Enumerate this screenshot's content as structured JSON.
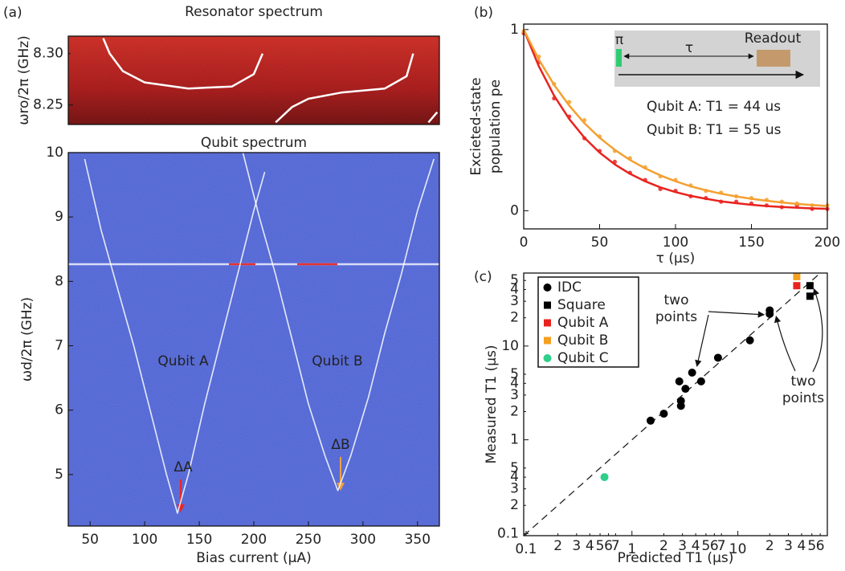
{
  "chart_data": [
    {
      "type": "line",
      "panel": "(a)",
      "title": "Resonator spectrum",
      "y_label": "ωro/2π (GHz)",
      "xlim": [
        30,
        370
      ],
      "ylim": [
        8.231,
        8.317
      ],
      "yticks": [
        8.25,
        {
          "value": 8.3,
          "label": "8.30"
        }
      ],
      "x": [
        62,
        68,
        80,
        100,
        140,
        180,
        200,
        208,
        214,
        220,
        235,
        250,
        280,
        320,
        340,
        346,
        352,
        360,
        368
      ],
      "series": [
        {
          "color": "#ffffff",
          "values": [
            8.315,
            8.3,
            8.283,
            8.272,
            8.266,
            8.268,
            8.28,
            8.3,
            null,
            8.233,
            8.248,
            8.256,
            8.262,
            8.266,
            8.278,
            8.3,
            null,
            8.233,
            8.243
          ]
        }
      ]
    },
    {
      "type": "line",
      "title": "Qubit spectrum",
      "x_label": "Bias current (μA)",
      "y_label": "ωd/2π (GHz)",
      "xlim": [
        30,
        370
      ],
      "ylim": [
        4.2,
        10
      ],
      "xticks": [
        50,
        100,
        150,
        200,
        250,
        300,
        350
      ],
      "yticks": [
        5,
        6,
        7,
        8,
        9,
        10
      ],
      "series": [
        {
          "color": "#ffffff",
          "x": [
            45,
            60,
            75,
            90,
            105,
            120,
            130,
            140,
            155,
            170,
            185,
            200,
            210
          ],
          "values": [
            9.9,
            8.8,
            7.9,
            7.0,
            6.0,
            5.0,
            4.4,
            5.0,
            6.1,
            7.1,
            8.1,
            9.1,
            9.7
          ]
        },
        {
          "color": "#ffffff",
          "x": [
            190,
            205,
            220,
            235,
            250,
            265,
            277,
            289,
            305,
            320,
            335,
            350,
            365
          ],
          "values": [
            10.0,
            9.0,
            8.1,
            7.1,
            6.1,
            5.3,
            4.75,
            5.3,
            6.2,
            7.2,
            8.1,
            9.1,
            9.9
          ]
        }
      ],
      "annotations": [
        {
          "text": "Qubit A",
          "color": "#e8262a"
        },
        {
          "text": "Qubit B",
          "color": "#f0a040"
        },
        {
          "text": "ΔA",
          "color": "#e8262a"
        },
        {
          "text": "ΔB",
          "color": "#f0a040"
        }
      ]
    },
    {
      "type": "line",
      "panel": "(b)",
      "x_label": "τ (μs)",
      "y_label": [
        "Excieted-state",
        "population pe"
      ],
      "xlim": [
        0,
        200
      ],
      "ylim": [
        -0.1,
        1.03
      ],
      "xticks": [
        0,
        50,
        100,
        150,
        200
      ],
      "yticks": [
        0,
        1
      ],
      "x": [
        0,
        10,
        20,
        30,
        40,
        50,
        60,
        70,
        80,
        90,
        100,
        110,
        120,
        130,
        140,
        150,
        160,
        170,
        180,
        190,
        200
      ],
      "series": [
        {
          "name": "Qubit A: T1 = 44 us",
          "color": "#e8231f",
          "values": [
            1,
            0.797,
            0.635,
            0.506,
            0.403,
            0.321,
            0.256,
            0.204,
            0.163,
            0.129,
            0.103,
            0.082,
            0.066,
            0.052,
            0.042,
            0.033,
            0.026,
            0.021,
            0.017,
            0.013,
            0.011
          ],
          "points": [
            0.98,
            0.82,
            0.62,
            0.52,
            0.4,
            0.33,
            0.27,
            0.21,
            0.17,
            0.12,
            0.11,
            0.08,
            0.07,
            0.05,
            0.05,
            0.04,
            0.03,
            0.02,
            0.03,
            0.01,
            0.01
          ]
        },
        {
          "name": "Qubit B: T1 = 55 us",
          "color": "#f4a030",
          "values": [
            1,
            0.834,
            0.695,
            0.58,
            0.483,
            0.403,
            0.336,
            0.28,
            0.234,
            0.195,
            0.163,
            0.135,
            0.113,
            0.094,
            0.079,
            0.066,
            0.055,
            0.046,
            0.038,
            0.032,
            0.026
          ],
          "points": [
            0.99,
            0.85,
            0.7,
            0.6,
            0.5,
            0.41,
            0.33,
            0.29,
            0.24,
            0.19,
            0.17,
            0.14,
            0.11,
            0.1,
            0.08,
            0.07,
            0.06,
            0.05,
            0.04,
            0.03,
            0.03
          ]
        }
      ],
      "inset": {
        "pulse": "π",
        "delay": "τ",
        "readout": "Readout"
      }
    },
    {
      "type": "scatter",
      "panel": "(c)",
      "x_label": "Predicted T1 (μs)",
      "y_label": "Measured T1 (μs)",
      "log_x": true,
      "log_y": true,
      "xlim": [
        0.095,
        70
      ],
      "ylim": [
        0.095,
        60
      ],
      "xticks": [
        0.1,
        {
          "value": 0.2,
          "label": "2"
        },
        {
          "value": 0.3,
          "label": "3"
        },
        {
          "value": 0.4,
          "label": "4"
        },
        {
          "value": 0.5,
          "label": "5"
        },
        {
          "value": 0.6,
          "label": "6"
        },
        {
          "value": 0.7,
          "label": "7"
        },
        1,
        {
          "value": 2,
          "label": "2"
        },
        {
          "value": 3,
          "label": "3"
        },
        {
          "value": 4,
          "label": "4"
        },
        {
          "value": 5,
          "label": "5"
        },
        {
          "value": 6,
          "label": "6"
        },
        {
          "value": 7,
          "label": "7"
        },
        10,
        {
          "value": 20,
          "label": "2"
        },
        {
          "value": 30,
          "label": "3"
        },
        {
          "value": 40,
          "label": "4"
        },
        {
          "value": 50,
          "label": "5"
        },
        {
          "value": 60,
          "label": "6"
        }
      ],
      "yticks": [
        0.1,
        {
          "value": 0.2,
          "label": "2"
        },
        {
          "value": 0.3,
          "label": "3"
        },
        {
          "value": 0.4,
          "label": "4"
        },
        {
          "value": 0.5,
          "label": "5"
        },
        1,
        {
          "value": 2,
          "label": "2"
        },
        {
          "value": 3,
          "label": "3"
        },
        {
          "value": 4,
          "label": "4"
        },
        {
          "value": 5,
          "label": "5"
        },
        10,
        {
          "value": 20,
          "label": "2"
        },
        {
          "value": 30,
          "label": "3"
        },
        {
          "value": 40,
          "label": "4"
        },
        {
          "value": 50,
          "label": "5"
        }
      ],
      "series": [
        {
          "name": "IDC",
          "color": "#000000",
          "marker": "circle",
          "x": [
            1.5,
            2,
            2.8,
            2.9,
            2.9,
            3.2,
            3.7,
            4.5,
            6.5,
            13,
            20,
            20
          ],
          "y": [
            1.6,
            1.9,
            4.2,
            2.3,
            2.6,
            3.5,
            5.2,
            4.2,
            7.5,
            11.5,
            22,
            24
          ]
        },
        {
          "name": "Square",
          "color": "#000000",
          "marker": "square",
          "x": [
            48,
            48
          ],
          "y": [
            44,
            34
          ]
        },
        {
          "name": "Qubit A",
          "color": "#e8231f",
          "marker": "square",
          "x": [
            36
          ],
          "y": [
            44
          ]
        },
        {
          "name": "Qubit B",
          "color": "#f4a020",
          "marker": "square",
          "x": [
            36
          ],
          "y": [
            55
          ]
        },
        {
          "name": "Qubit C",
          "color": "#2ed08a",
          "marker": "circle",
          "x": [
            0.55
          ],
          "y": [
            0.4
          ]
        }
      ],
      "annotations": [
        [
          "two",
          "points"
        ],
        [
          "two",
          "points"
        ]
      ]
    }
  ]
}
